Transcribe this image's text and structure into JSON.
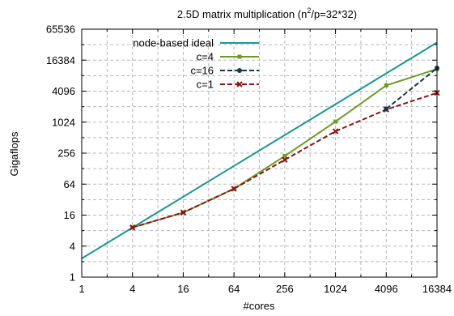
{
  "chart_data": {
    "type": "line",
    "title_main": "2.5D matrix multiplication (n",
    "title_sup": "2",
    "title_tail": "/p=32*32)",
    "xlabel": "#cores",
    "ylabel": "Gigaflops",
    "x_scale": "log2",
    "y_scale": "log2",
    "xlim": [
      1,
      16384
    ],
    "ylim": [
      1,
      65536
    ],
    "x_ticks": [
      1,
      4,
      16,
      64,
      256,
      1024,
      4096,
      16384
    ],
    "x_tick_labels": [
      "1",
      "4",
      "16",
      "64",
      "256",
      "1024",
      "4096",
      "16384"
    ],
    "y_ticks": [
      1,
      4,
      16,
      64,
      256,
      1024,
      4096,
      16384,
      65536
    ],
    "y_tick_labels": [
      "1",
      "4",
      "16",
      "64",
      "256",
      "1024",
      "4096",
      "16384",
      "65536"
    ],
    "grid": true,
    "legend_position": "top-left",
    "series": [
      {
        "name": "node-based ideal",
        "color": "#1a9696",
        "dash": "solid",
        "marker": "none",
        "x": [
          1,
          16384
        ],
        "y": [
          2.3,
          36000
        ]
      },
      {
        "name": "c=4",
        "color": "#6e9a28",
        "dash": "solid",
        "marker": "square",
        "x": [
          4,
          16,
          64,
          256,
          1024,
          4096,
          16384
        ],
        "y": [
          9.2,
          18,
          52,
          225,
          1050,
          5300,
          11000
        ]
      },
      {
        "name": "c=16",
        "color": "#14384a",
        "dash": "dashed",
        "marker": "circle",
        "x": [
          4096,
          16384
        ],
        "y": [
          1850,
          11500
        ]
      },
      {
        "name": "c=1",
        "color": "#8c1414",
        "dash": "dashed",
        "marker": "cross",
        "x": [
          4,
          16,
          64,
          256,
          1024,
          4096,
          16384
        ],
        "y": [
          9.2,
          18,
          52,
          190,
          680,
          1800,
          3800
        ]
      }
    ]
  }
}
